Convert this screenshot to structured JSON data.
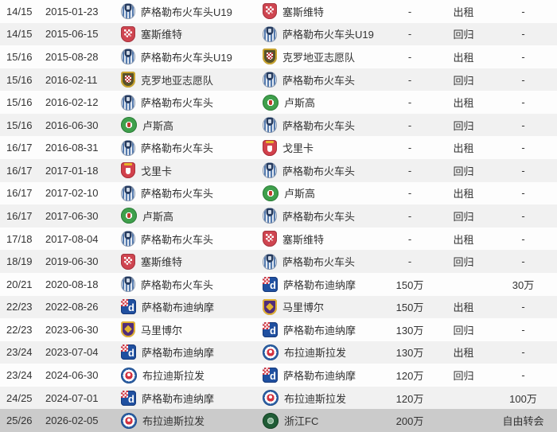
{
  "colors": {
    "row_white": "#fdfdfd",
    "row_gray": "#f1f1f1",
    "row_highlight": "#cbcbcb",
    "text": "#333333"
  },
  "icons": {
    "lokomotiva": "lokomotiva-zagreb-badge-icon",
    "sesvete": "sesvete-badge-icon",
    "volunteers": "croatia-volunteers-badge-icon",
    "rudes": "rudes-badge-icon",
    "gorica": "gorica-badge-icon",
    "dinamo": "dinamo-zagreb-badge-icon",
    "maribor": "maribor-badge-icon",
    "slovan": "slovan-bratislava-badge-icon",
    "zhejiang": "zhejiang-fc-badge-icon"
  },
  "table": {
    "rows": [
      {
        "season": "14/15",
        "date": "2015-01-23",
        "from": {
          "name": "萨格勒布火车头U19",
          "logo": "lokomotiva"
        },
        "to": {
          "name": "塞斯维特",
          "logo": "sesvete"
        },
        "fee": "-",
        "type": "出租",
        "fee2": "-",
        "highlighted": false
      },
      {
        "season": "14/15",
        "date": "2015-06-15",
        "from": {
          "name": "塞斯维特",
          "logo": "sesvete"
        },
        "to": {
          "name": "萨格勒布火车头U19",
          "logo": "lokomotiva"
        },
        "fee": "-",
        "type": "回归",
        "fee2": "-",
        "highlighted": false
      },
      {
        "season": "15/16",
        "date": "2015-08-28",
        "from": {
          "name": "萨格勒布火车头U19",
          "logo": "lokomotiva"
        },
        "to": {
          "name": "克罗地亚志愿队",
          "logo": "volunteers"
        },
        "fee": "-",
        "type": "出租",
        "fee2": "-",
        "highlighted": false
      },
      {
        "season": "15/16",
        "date": "2016-02-11",
        "from": {
          "name": "克罗地亚志愿队",
          "logo": "volunteers"
        },
        "to": {
          "name": "萨格勒布火车头",
          "logo": "lokomotiva"
        },
        "fee": "-",
        "type": "回归",
        "fee2": "-",
        "highlighted": false
      },
      {
        "season": "15/16",
        "date": "2016-02-12",
        "from": {
          "name": "萨格勒布火车头",
          "logo": "lokomotiva"
        },
        "to": {
          "name": "卢斯高",
          "logo": "rudes"
        },
        "fee": "-",
        "type": "出租",
        "fee2": "-",
        "highlighted": false
      },
      {
        "season": "15/16",
        "date": "2016-06-30",
        "from": {
          "name": "卢斯高",
          "logo": "rudes"
        },
        "to": {
          "name": "萨格勒布火车头",
          "logo": "lokomotiva"
        },
        "fee": "-",
        "type": "回归",
        "fee2": "-",
        "highlighted": false
      },
      {
        "season": "16/17",
        "date": "2016-08-31",
        "from": {
          "name": "萨格勒布火车头",
          "logo": "lokomotiva"
        },
        "to": {
          "name": "戈里卡",
          "logo": "gorica"
        },
        "fee": "-",
        "type": "出租",
        "fee2": "-",
        "highlighted": false
      },
      {
        "season": "16/17",
        "date": "2017-01-18",
        "from": {
          "name": "戈里卡",
          "logo": "gorica"
        },
        "to": {
          "name": "萨格勒布火车头",
          "logo": "lokomotiva"
        },
        "fee": "-",
        "type": "回归",
        "fee2": "-",
        "highlighted": false
      },
      {
        "season": "16/17",
        "date": "2017-02-10",
        "from": {
          "name": "萨格勒布火车头",
          "logo": "lokomotiva"
        },
        "to": {
          "name": "卢斯高",
          "logo": "rudes"
        },
        "fee": "-",
        "type": "出租",
        "fee2": "-",
        "highlighted": false
      },
      {
        "season": "16/17",
        "date": "2017-06-30",
        "from": {
          "name": "卢斯高",
          "logo": "rudes"
        },
        "to": {
          "name": "萨格勒布火车头",
          "logo": "lokomotiva"
        },
        "fee": "-",
        "type": "回归",
        "fee2": "-",
        "highlighted": false
      },
      {
        "season": "17/18",
        "date": "2017-08-04",
        "from": {
          "name": "萨格勒布火车头",
          "logo": "lokomotiva"
        },
        "to": {
          "name": "塞斯维特",
          "logo": "sesvete"
        },
        "fee": "-",
        "type": "出租",
        "fee2": "-",
        "highlighted": false
      },
      {
        "season": "18/19",
        "date": "2019-06-30",
        "from": {
          "name": "塞斯维特",
          "logo": "sesvete"
        },
        "to": {
          "name": "萨格勒布火车头",
          "logo": "lokomotiva"
        },
        "fee": "-",
        "type": "回归",
        "fee2": "-",
        "highlighted": false
      },
      {
        "season": "20/21",
        "date": "2020-08-18",
        "from": {
          "name": "萨格勒布火车头",
          "logo": "lokomotiva"
        },
        "to": {
          "name": "萨格勒布迪纳摩",
          "logo": "dinamo"
        },
        "fee": "150万",
        "type": "",
        "fee2": "30万",
        "highlighted": false
      },
      {
        "season": "22/23",
        "date": "2022-08-26",
        "from": {
          "name": "萨格勒布迪纳摩",
          "logo": "dinamo"
        },
        "to": {
          "name": "马里博尔",
          "logo": "maribor"
        },
        "fee": "150万",
        "type": "出租",
        "fee2": "-",
        "highlighted": false
      },
      {
        "season": "22/23",
        "date": "2023-06-30",
        "from": {
          "name": "马里博尔",
          "logo": "maribor"
        },
        "to": {
          "name": "萨格勒布迪纳摩",
          "logo": "dinamo"
        },
        "fee": "130万",
        "type": "回归",
        "fee2": "-",
        "highlighted": false
      },
      {
        "season": "23/24",
        "date": "2023-07-04",
        "from": {
          "name": "萨格勒布迪纳摩",
          "logo": "dinamo"
        },
        "to": {
          "name": "布拉迪斯拉发",
          "logo": "slovan"
        },
        "fee": "130万",
        "type": "出租",
        "fee2": "-",
        "highlighted": false
      },
      {
        "season": "23/24",
        "date": "2024-06-30",
        "from": {
          "name": "布拉迪斯拉发",
          "logo": "slovan"
        },
        "to": {
          "name": "萨格勒布迪纳摩",
          "logo": "dinamo"
        },
        "fee": "120万",
        "type": "回归",
        "fee2": "-",
        "highlighted": false
      },
      {
        "season": "24/25",
        "date": "2024-07-01",
        "from": {
          "name": "萨格勒布迪纳摩",
          "logo": "dinamo"
        },
        "to": {
          "name": "布拉迪斯拉发",
          "logo": "slovan"
        },
        "fee": "120万",
        "type": "",
        "fee2": "100万",
        "highlighted": false
      },
      {
        "season": "25/26",
        "date": "2026-02-05",
        "from": {
          "name": "布拉迪斯拉发",
          "logo": "slovan"
        },
        "to": {
          "name": "浙江FC",
          "logo": "zhejiang"
        },
        "fee": "200万",
        "type": "",
        "fee2": "自由转会",
        "highlighted": true
      }
    ]
  }
}
